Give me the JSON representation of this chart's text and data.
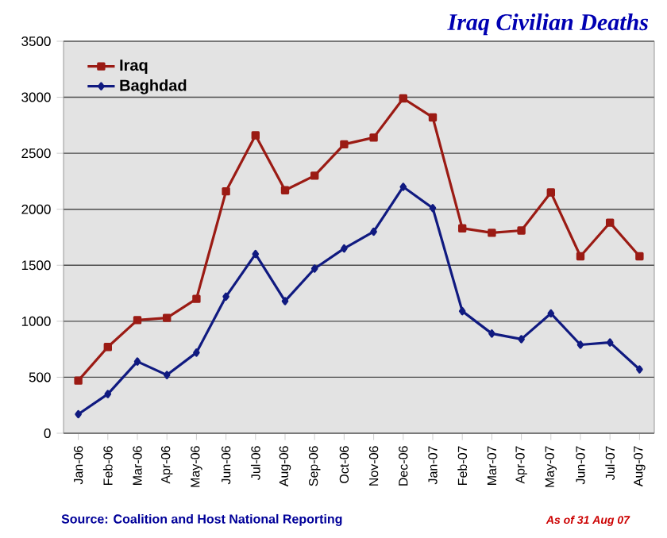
{
  "chart_data": {
    "type": "line",
    "title": "Iraq Civilian Deaths",
    "categories": [
      "Jan-06",
      "Feb-06",
      "Mar-06",
      "Apr-06",
      "May-06",
      "Jun-06",
      "Jul-06",
      "Aug-06",
      "Sep-06",
      "Oct-06",
      "Nov-06",
      "Dec-06",
      "Jan-07",
      "Feb-07",
      "Mar-07",
      "Apr-07",
      "May-07",
      "Jun-07",
      "Jul-07",
      "Aug-07"
    ],
    "series": [
      {
        "name": "Iraq",
        "color": "#9b1b14",
        "marker": "square",
        "values": [
          470,
          770,
          1010,
          1030,
          1200,
          2160,
          2660,
          2170,
          2300,
          2580,
          2640,
          2990,
          2820,
          1830,
          1790,
          1810,
          2150,
          1580,
          1880,
          1580
        ]
      },
      {
        "name": "Baghdad",
        "color": "#101a80",
        "marker": "diamond",
        "values": [
          170,
          350,
          640,
          520,
          720,
          1220,
          1600,
          1180,
          1470,
          1650,
          1800,
          2200,
          2010,
          1090,
          890,
          840,
          1070,
          790,
          810,
          570
        ]
      }
    ],
    "ylim": [
      0,
      3500
    ],
    "yticks": [
      0,
      500,
      1000,
      1500,
      2000,
      2500,
      3000,
      3500
    ],
    "grid": "y",
    "legend": "top left",
    "annotations": [
      "Source: Coalition and Host National Reporting",
      "As of 31 Aug 07"
    ]
  }
}
